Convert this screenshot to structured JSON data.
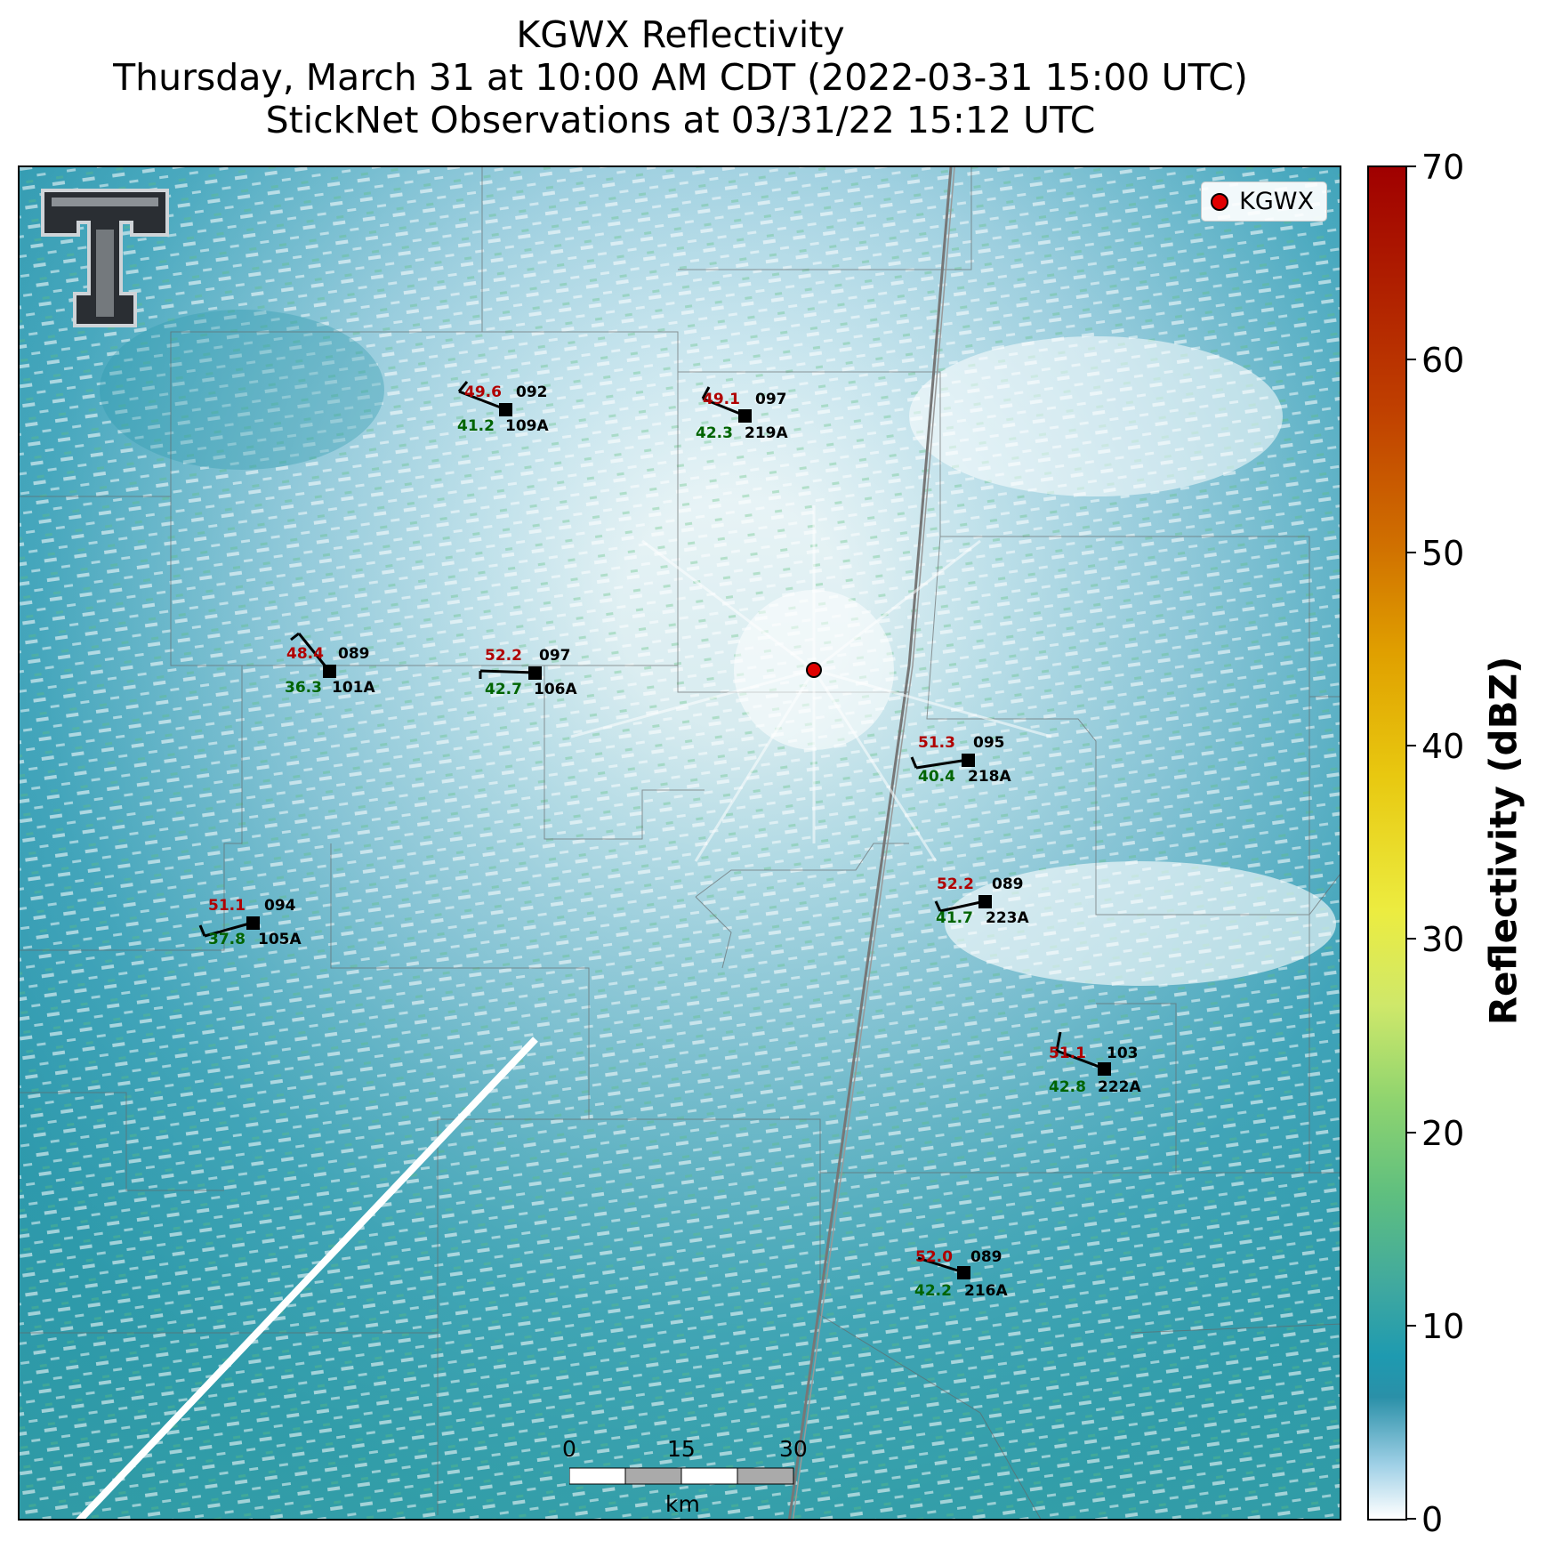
{
  "title": {
    "line1": "KGWX Reflectivity",
    "line2": "Thursday, March 31 at 10:00 AM CDT (2022-03-31 15:00 UTC)",
    "line3": "StickNet Observations at 03/31/22 15:12 UTC"
  },
  "legend": {
    "label": "KGWX",
    "marker_color": "#e00000"
  },
  "colorbar": {
    "title": "Reflectivity (dBZ)",
    "ticks": [
      "0",
      "10",
      "20",
      "30",
      "40",
      "50",
      "60",
      "70"
    ],
    "range": [
      0,
      70
    ]
  },
  "scalebar": {
    "labels": [
      "0",
      "15",
      "30"
    ],
    "unit": "km"
  },
  "stations": [
    {
      "id": "109A",
      "temp": "49.6",
      "dew": "41.2",
      "pressure": "092"
    },
    {
      "id": "219A",
      "temp": "49.1",
      "dew": "42.3",
      "pressure": "097"
    },
    {
      "id": "101A",
      "temp": "48.4",
      "dew": "36.3",
      "pressure": "089"
    },
    {
      "id": "106A",
      "temp": "52.2",
      "dew": "42.7",
      "pressure": "097"
    },
    {
      "id": "218A",
      "temp": "51.3",
      "dew": "40.4",
      "pressure": "095"
    },
    {
      "id": "223A",
      "temp": "52.2",
      "dew": "41.7",
      "pressure": "089"
    },
    {
      "id": "105A",
      "temp": "51.1",
      "dew": "37.8",
      "pressure": "094"
    },
    {
      "id": "222A",
      "temp": "51.1",
      "dew": "42.8",
      "pressure": "103"
    },
    {
      "id": "216A",
      "temp": "52.0",
      "dew": "42.2",
      "pressure": "089"
    }
  ],
  "colors": {
    "temp": "#b00000",
    "dew": "#006400",
    "echo_dark": "#1e8fa6",
    "echo_light": "#9fd0e6",
    "echo_green": "#5fbf7f"
  }
}
